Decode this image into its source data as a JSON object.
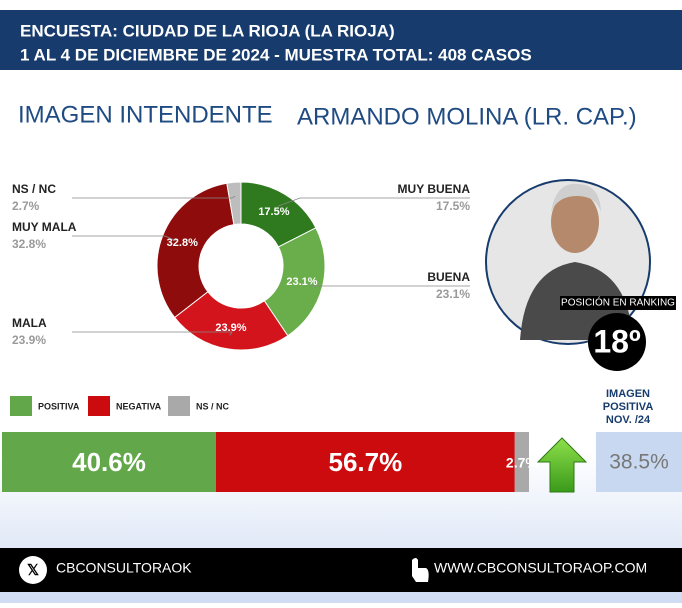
{
  "header": {
    "lines": [
      "ENCUESTA: CIUDAD DE LA RIOJA (LA RIOJA)",
      "1 AL 4 DE DICIEMBRE DE 2024 - MUESTRA TOTAL: 408 CASOS"
    ]
  },
  "ranking": {
    "label": "POSICIÓN EN RANKING",
    "position": "18º"
  },
  "previous": {
    "lines": [
      "IMAGEN",
      "POSITIVA",
      "NOV. /24"
    ],
    "value_label": "38.5%"
  },
  "footer": {
    "social": "CBCONSULTORAOK",
    "web": "WWW.CBCONSULTORAOP.COM"
  },
  "chart_data": [
    {
      "type": "donut",
      "title": "IMAGEN INTENDENTE",
      "subtitle": "ARMANDO MOLINA (LR. CAP.)",
      "categories": [
        "MUY BUENA",
        "BUENA",
        "MALA",
        "MUY MALA",
        "NS / NC"
      ],
      "values": [
        17.5,
        23.1,
        23.9,
        32.8,
        2.7
      ],
      "value_labels": [
        "17.5%",
        "23.1%",
        "23.9%",
        "32.8%",
        "2.7%"
      ],
      "colors": [
        "#2f7a1f",
        "#6aae4c",
        "#d3141c",
        "#8e0c0c",
        "#bdbdbd"
      ]
    },
    {
      "type": "stacked-bar",
      "categories": [
        "POSITIVA",
        "NEGATIVA",
        "NS / NC"
      ],
      "values": [
        40.6,
        56.7,
        2.7
      ],
      "value_labels": [
        "40.6%",
        "56.7%",
        "2.7%"
      ],
      "colors": [
        "#62a84a",
        "#cc0b0e",
        "#a9a9a9"
      ]
    }
  ]
}
